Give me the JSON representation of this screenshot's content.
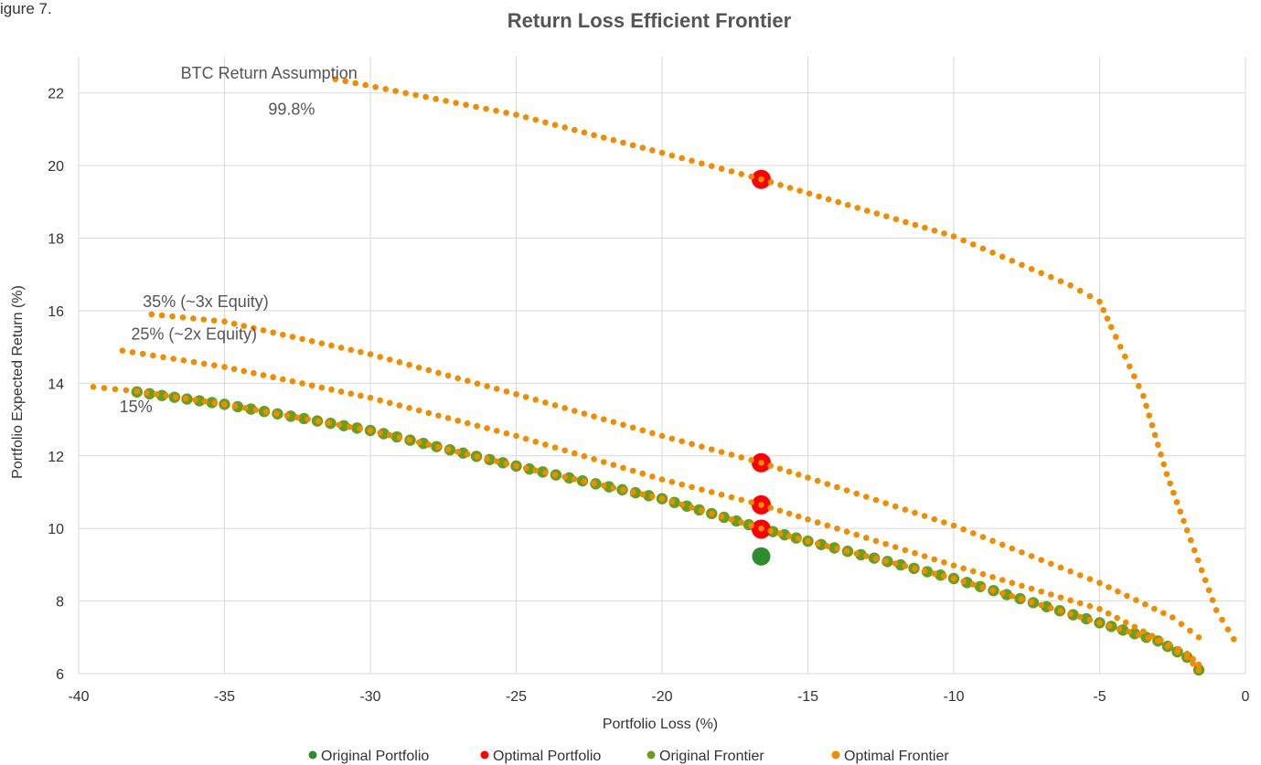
{
  "figure_label": "igure 7.",
  "chart_data": {
    "type": "scatter",
    "title": "Return Loss Efficient Frontier",
    "xlabel": "Portfolio Loss (%)",
    "ylabel": "Portfolio Expected Return (%)",
    "xlim": [
      -40,
      0
    ],
    "ylim": [
      6,
      23
    ],
    "xticks": [
      -40,
      -35,
      -30,
      -25,
      -20,
      -15,
      -10,
      -5,
      0
    ],
    "yticks": [
      6,
      8,
      10,
      12,
      14,
      16,
      18,
      20,
      22
    ],
    "grid": true,
    "legend_position": "bottom",
    "colors": {
      "original_portfolio": "#2e8b2e",
      "optimal_portfolio": "#ff0000",
      "original_frontier": "#6a9e1e",
      "optimal_frontier": "#f08c00"
    },
    "annotations": [
      {
        "text": "BTC Return Assumption",
        "x": -36.5,
        "y": 22.4
      },
      {
        "text": "99.8%",
        "x": -33.5,
        "y": 21.4
      },
      {
        "text": "35% (~3x Equity)",
        "x": -37.8,
        "y": 16.1
      },
      {
        "text": "25% (~2x Equity)",
        "x": -38.2,
        "y": 15.2
      },
      {
        "text": "15%",
        "x": -38.6,
        "y": 13.2
      }
    ],
    "series": [
      {
        "name": "Original Portfolio",
        "points": [
          [
            -16.6,
            9.23
          ]
        ]
      },
      {
        "name": "Optimal Portfolio",
        "points": [
          [
            -16.6,
            19.62
          ],
          [
            -16.6,
            11.81
          ],
          [
            -16.6,
            10.65
          ],
          [
            -16.6,
            9.98
          ]
        ]
      },
      {
        "name": "Original Frontier",
        "points": [
          [
            -38.0,
            13.76
          ],
          [
            -35.0,
            13.42
          ],
          [
            -30.0,
            12.7
          ],
          [
            -25.0,
            11.72
          ],
          [
            -20.0,
            10.82
          ],
          [
            -16.6,
            10.0
          ],
          [
            -15.0,
            9.65
          ],
          [
            -10.0,
            8.62
          ],
          [
            -5.0,
            7.4
          ],
          [
            -3.0,
            6.9
          ],
          [
            -2.0,
            6.45
          ],
          [
            -1.6,
            6.1
          ]
        ]
      },
      {
        "name": "Optimal Frontier",
        "curves": [
          {
            "label": "99.8%",
            "points": [
              [
                -31.2,
                22.38
              ],
              [
                -25.0,
                21.4
              ],
              [
                -20.0,
                20.35
              ],
              [
                -16.6,
                19.62
              ],
              [
                -10.0,
                18.05
              ],
              [
                -6.0,
                16.7
              ],
              [
                -5.0,
                16.25
              ],
              [
                -4.6,
                15.55
              ],
              [
                -3.5,
                13.65
              ],
              [
                -2.7,
                11.5
              ],
              [
                -2.0,
                9.95
              ],
              [
                -1.0,
                7.75
              ],
              [
                -0.4,
                6.95
              ]
            ]
          },
          {
            "label": "35% (~3x Equity)",
            "points": [
              [
                -37.5,
                15.9
              ],
              [
                -35.0,
                15.7
              ],
              [
                -30.0,
                14.8
              ],
              [
                -25.0,
                13.7
              ],
              [
                -20.0,
                12.55
              ],
              [
                -16.6,
                11.81
              ],
              [
                -15.0,
                11.4
              ],
              [
                -10.0,
                10.08
              ],
              [
                -5.0,
                8.5
              ],
              [
                -2.5,
                7.55
              ],
              [
                -1.6,
                7.0
              ]
            ]
          },
          {
            "label": "25% (~2x Equity)",
            "points": [
              [
                -38.5,
                14.9
              ],
              [
                -35.0,
                14.45
              ],
              [
                -30.0,
                13.6
              ],
              [
                -25.0,
                12.55
              ],
              [
                -20.0,
                11.35
              ],
              [
                -16.6,
                10.65
              ],
              [
                -15.0,
                10.25
              ],
              [
                -10.0,
                8.98
              ],
              [
                -5.0,
                7.78
              ],
              [
                -2.0,
                6.55
              ],
              [
                -1.6,
                6.25
              ]
            ]
          },
          {
            "label": "15%",
            "points": [
              [
                -39.5,
                13.9
              ],
              [
                -38.0,
                13.78
              ],
              [
                -35.0,
                13.42
              ],
              [
                -30.0,
                12.7
              ],
              [
                -25.0,
                11.72
              ],
              [
                -20.0,
                10.82
              ],
              [
                -16.6,
                10.0
              ],
              [
                -15.0,
                9.65
              ],
              [
                -10.0,
                8.62
              ],
              [
                -5.0,
                7.4
              ],
              [
                -3.0,
                6.9
              ],
              [
                -2.0,
                6.45
              ],
              [
                -1.6,
                6.1
              ]
            ]
          }
        ]
      }
    ]
  }
}
